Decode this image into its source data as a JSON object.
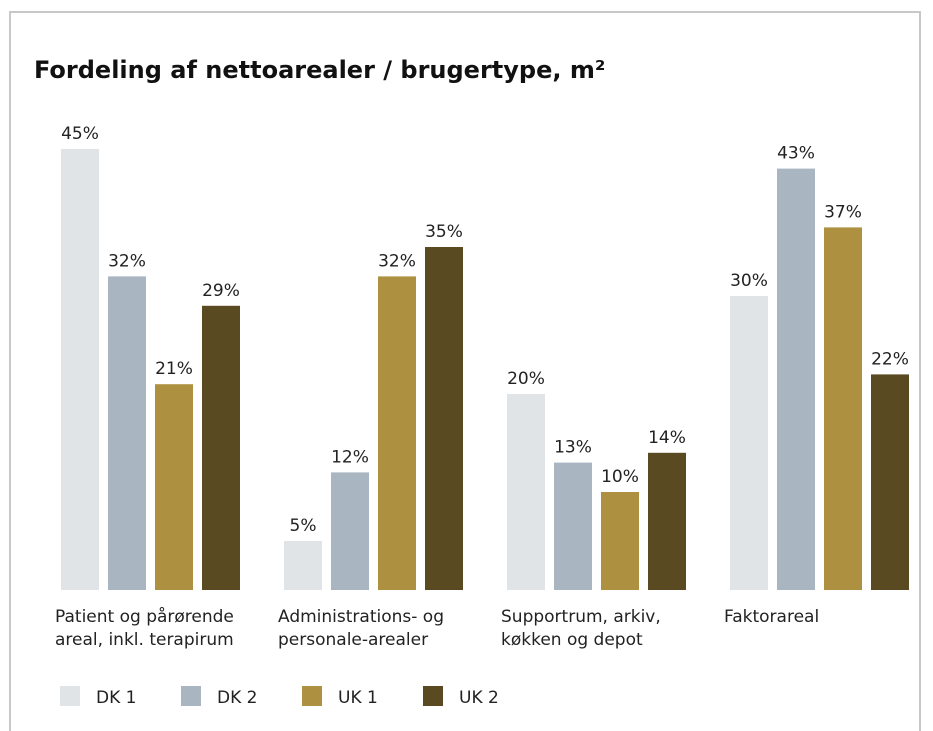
{
  "chart_data": {
    "type": "bar",
    "title": "Fordeling af nettoarealer / brugertype, m²",
    "categories": [
      [
        "Patient og pårørende",
        "areal, inkl. terapirum"
      ],
      [
        "Administrations- og",
        "personale-arealer"
      ],
      [
        "Supportrum, arkiv,",
        "køkken og depot"
      ],
      [
        "Faktorareal"
      ]
    ],
    "series": [
      {
        "name": "DK 1",
        "color": "#e1e4e7",
        "values": [
          45,
          5,
          20,
          30
        ],
        "value_labels": [
          "45%",
          "5%",
          "20%",
          "30%"
        ]
      },
      {
        "name": "DK 2",
        "color": "#a9b5c0",
        "values": [
          32,
          12,
          13,
          43
        ],
        "value_labels": [
          "32%",
          "12%",
          "13%",
          "43%"
        ]
      },
      {
        "name": "UK 1",
        "color": "#ad9140",
        "values": [
          21,
          32,
          10,
          37
        ],
        "value_labels": [
          "21%",
          "32%",
          "10%",
          "37%"
        ]
      },
      {
        "name": "UK 2",
        "color": "#5a4a22",
        "values": [
          29,
          35,
          14,
          22
        ],
        "value_labels": [
          "29%",
          "35%",
          "14%",
          "22%"
        ]
      }
    ]
  }
}
